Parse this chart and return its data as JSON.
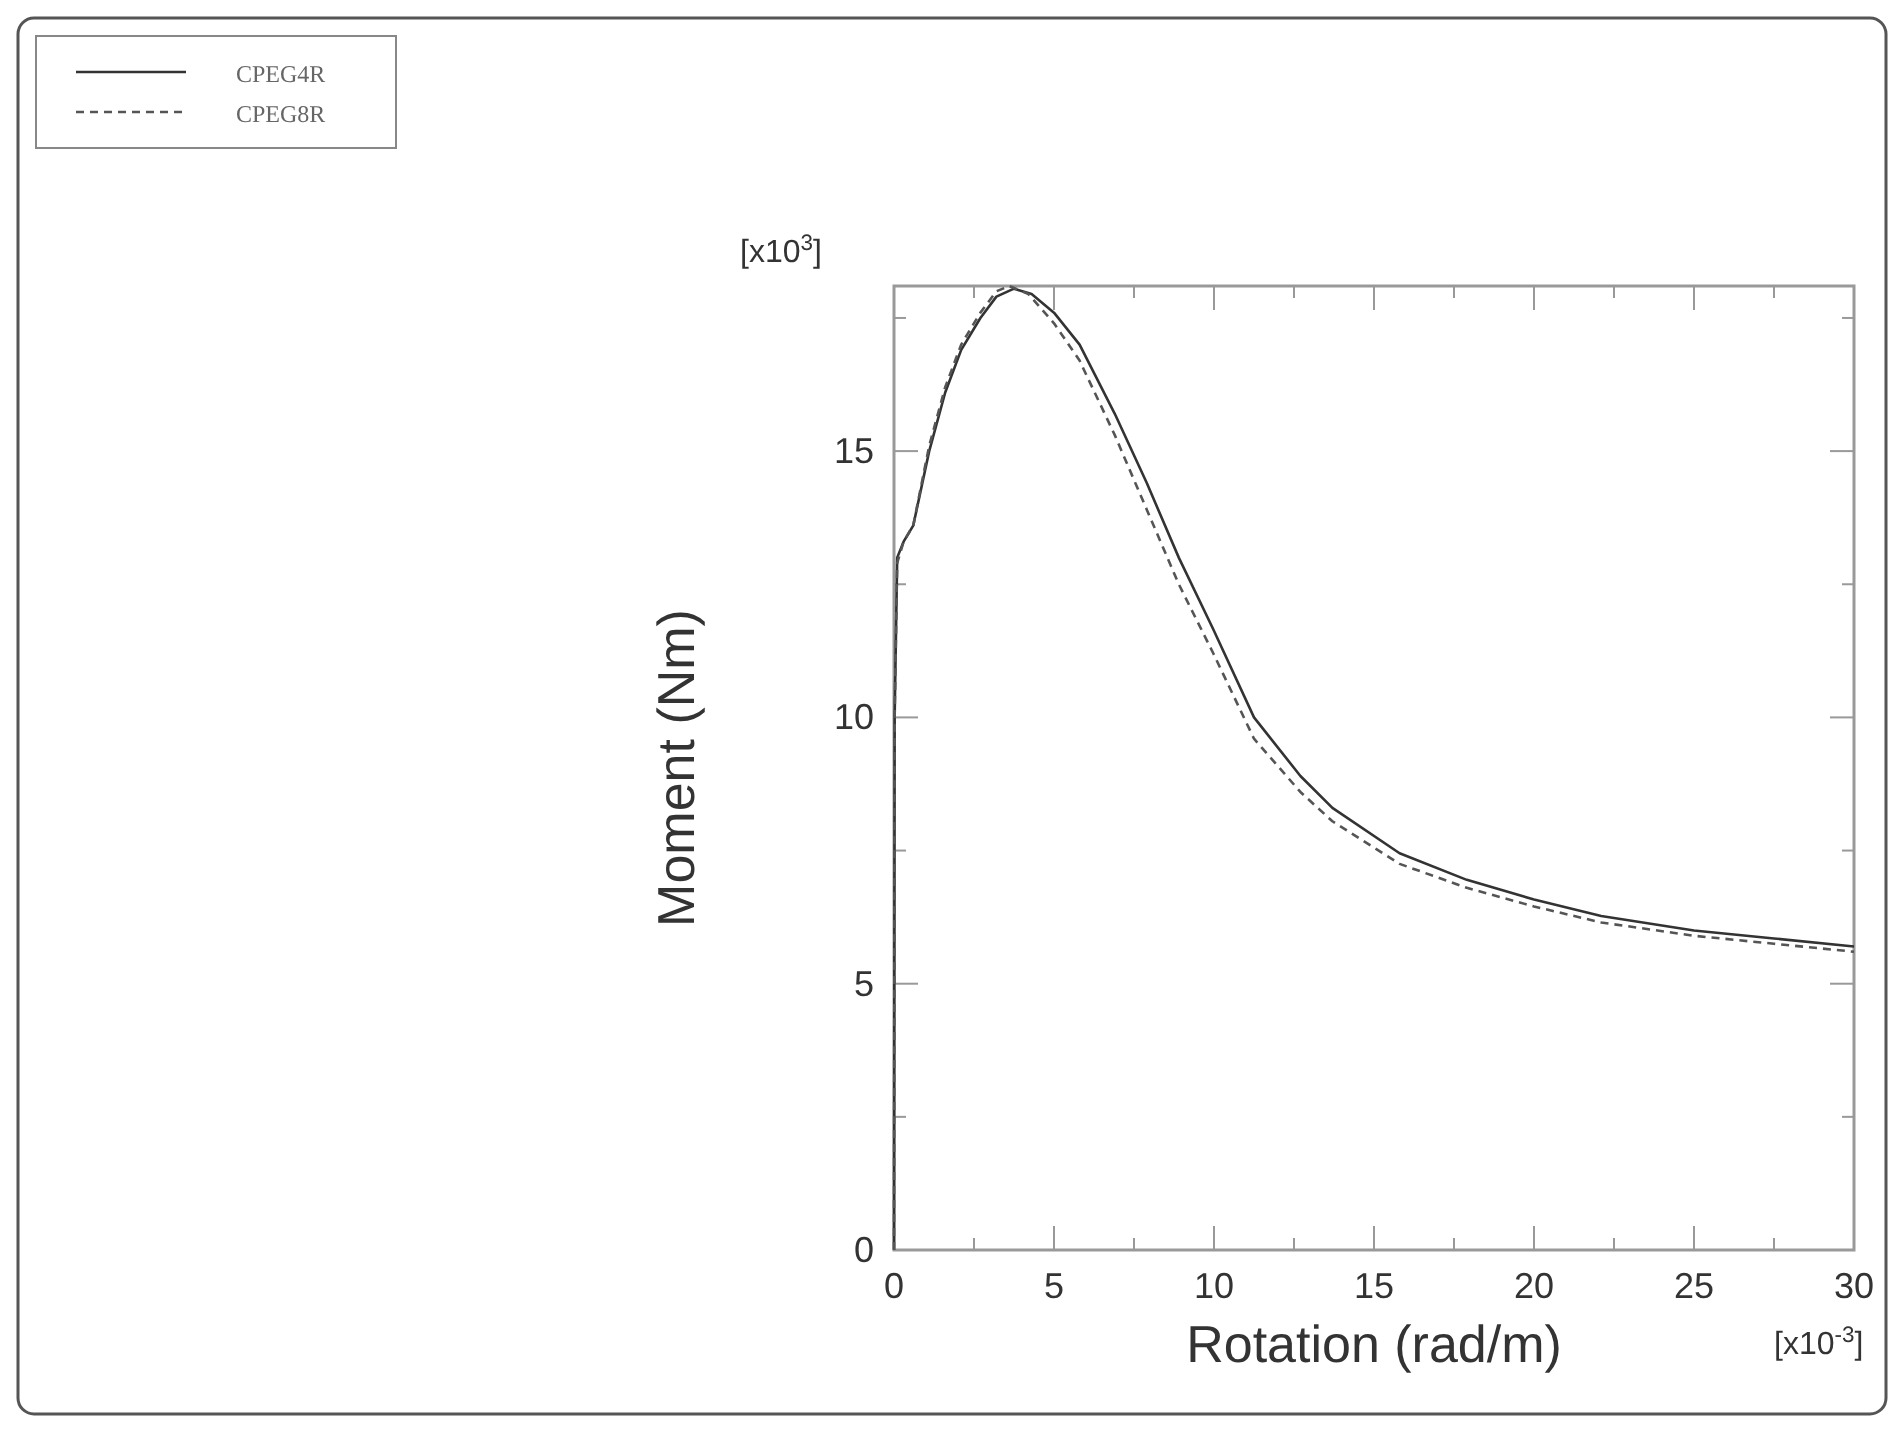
{
  "chart_data": {
    "type": "line",
    "xlabel": "Rotation (rad/m)",
    "ylabel": "Moment (Nm)",
    "annotations": [
      "[x10$^{3}$]",
      "[x10$^{-3}$]"
    ],
    "xlim": [
      0,
      30
    ],
    "ylim": [
      0,
      18.1
    ],
    "xticks": [
      0,
      {
        "value": 2.5,
        "label": null
      },
      5,
      {
        "value": 7.5,
        "label": null
      },
      10,
      {
        "value": 12.5,
        "label": null
      },
      15,
      {
        "value": 17.5,
        "label": null
      },
      20,
      {
        "value": 22.5,
        "label": null
      },
      25,
      {
        "value": 27.5,
        "label": null
      },
      30
    ],
    "yticks": [
      0,
      {
        "value": 2.5,
        "label": null
      },
      5,
      {
        "value": 7.5,
        "label": null
      },
      10,
      {
        "value": 12.5,
        "label": null
      },
      15,
      {
        "value": 17.5,
        "label": null
      }
    ],
    "legend": "top left",
    "grid": false,
    "marker": "none",
    "series": [
      {
        "name": "CPEG4R",
        "color": "#333333",
        "line_style": "solid",
        "x": [
          0,
          0.02,
          0.1,
          0.3,
          0.6,
          1.1,
          1.6,
          2.1,
          2.7,
          3.2,
          3.75,
          4.3,
          5,
          5.8,
          6.9,
          7.9,
          8.9,
          9.98,
          11.25,
          12.7,
          13.7,
          15.8,
          17.9,
          20,
          22.1,
          25,
          27.5,
          30
        ],
        "values": [
          0,
          10,
          13.0,
          13.3,
          13.6,
          15.0,
          16.1,
          16.9,
          17.5,
          17.9,
          18.05,
          17.95,
          17.6,
          17.0,
          15.7,
          14.4,
          13.0,
          11.65,
          10.0,
          8.9,
          8.3,
          7.45,
          6.95,
          6.58,
          6.27,
          6.0,
          5.85,
          5.7
        ]
      },
      {
        "name": "CPEG8R",
        "color": "#555555",
        "line_style": "dashed",
        "x": [
          0,
          0.02,
          0.1,
          0.3,
          0.6,
          1.1,
          1.6,
          2.1,
          2.7,
          3.2,
          3.6,
          4.2,
          5,
          5.8,
          6.9,
          7.9,
          8.9,
          9.98,
          11.25,
          12.7,
          13.7,
          15.8,
          17.9,
          20,
          22.1,
          25,
          27.5,
          30
        ],
        "values": [
          0,
          10,
          12.9,
          13.3,
          13.6,
          15.1,
          16.2,
          17.0,
          17.6,
          18.0,
          18.1,
          17.95,
          17.4,
          16.7,
          15.3,
          13.9,
          12.5,
          11.2,
          9.6,
          8.6,
          8.05,
          7.25,
          6.8,
          6.45,
          6.15,
          5.9,
          5.75,
          5.6
        ]
      }
    ]
  }
}
